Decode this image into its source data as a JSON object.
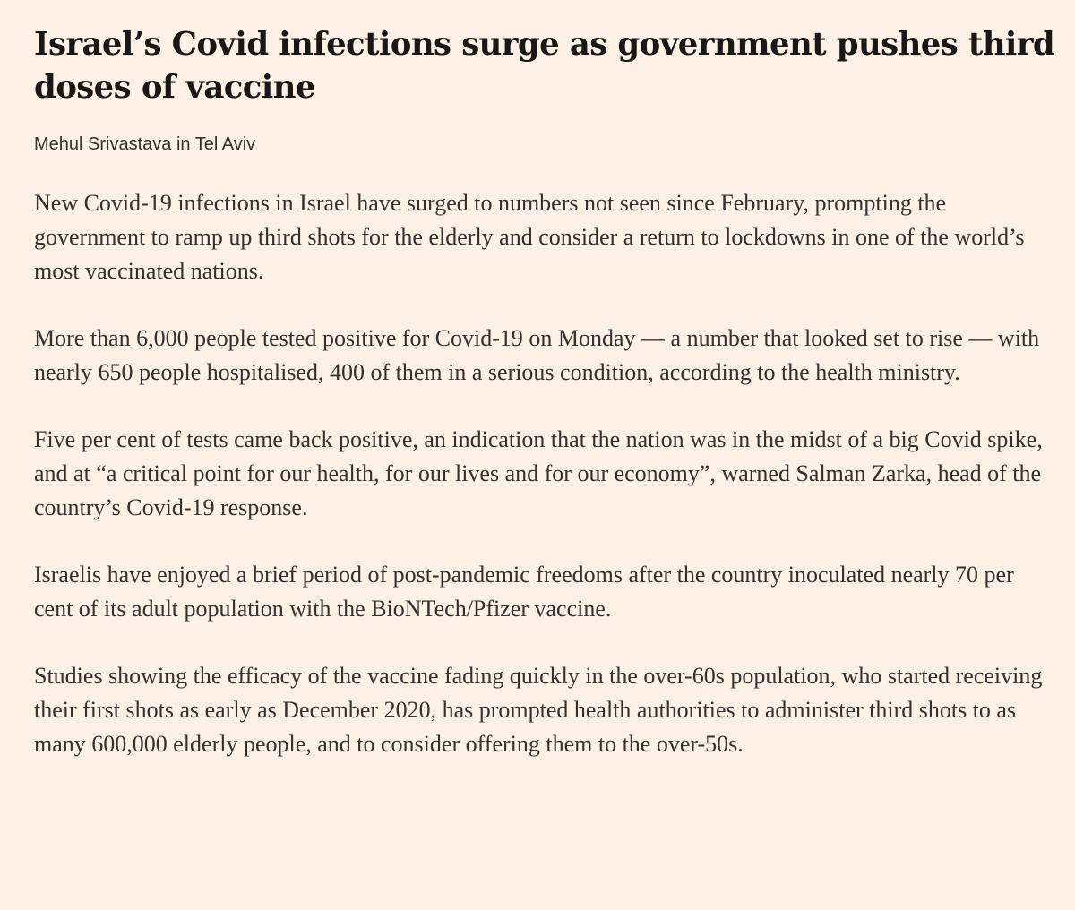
{
  "article": {
    "headline": "Israel’s Covid infections surge as government pushes third doses of vaccine",
    "byline": "Mehul Srivastava in Tel Aviv",
    "paragraphs": [
      "New Covid-19 infections in Israel have surged to numbers not seen since February, prompting the government to ramp up third shots for the elderly and consider a return to lockdowns in one of the world’s most vaccinated nations.",
      "More than 6,000 people tested positive for Covid-19 on Monday — a number that looked set to rise — with nearly 650 people hospitalised, 400 of them in a serious condition, according to the health ministry.",
      "Five per cent of tests came back positive, an indication that the nation was in the midst of a big Covid spike, and at “a critical point for our health, for our lives and for our economy”, warned Salman Zarka, head of the country’s Covid-19 response.",
      "Israelis have enjoyed a brief period of post-pandemic freedoms after the country inoculated nearly 70 per cent of its adult population with the BioNTech/Pfizer vaccine.",
      "Studies showing the efficacy of the vaccine fading quickly in the over-60s population, who started receiving their first shots as early as December 2020, has prompted health authorities to administer third shots to as many 600,000 elderly people, and to consider offering them to the over-50s."
    ]
  },
  "colors": {
    "background": "#fdf1e6",
    "headline": "#1a1817",
    "text": "#33302e"
  }
}
